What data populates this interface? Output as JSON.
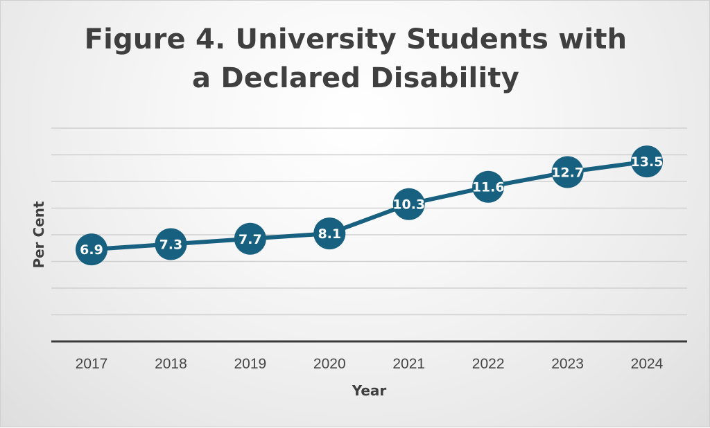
{
  "chart_data": {
    "type": "line",
    "title_line1": "Figure 4. University Students with",
    "title_line2": "a Declared Disability",
    "xlabel": "Year",
    "ylabel": "Per Cent",
    "categories": [
      "2017",
      "2018",
      "2019",
      "2020",
      "2021",
      "2022",
      "2023",
      "2024"
    ],
    "series": [
      {
        "name": "Per Cent",
        "values": [
          6.9,
          7.3,
          7.7,
          8.1,
          10.3,
          11.6,
          12.7,
          13.5
        ],
        "labels": [
          "6.9",
          "7.3",
          "7.7",
          "8.1",
          "10.3",
          "11.6",
          "12.7",
          "13.5"
        ]
      }
    ],
    "ylim": [
      0,
      16
    ],
    "gridlines": true,
    "y_tick_labels_shown": false,
    "data_labels": true,
    "legend": "none",
    "line_color": "#17607f",
    "marker_color": "#17607f",
    "gridline_color": "#d0d0d0",
    "axis_color": "#3a3a3a"
  }
}
